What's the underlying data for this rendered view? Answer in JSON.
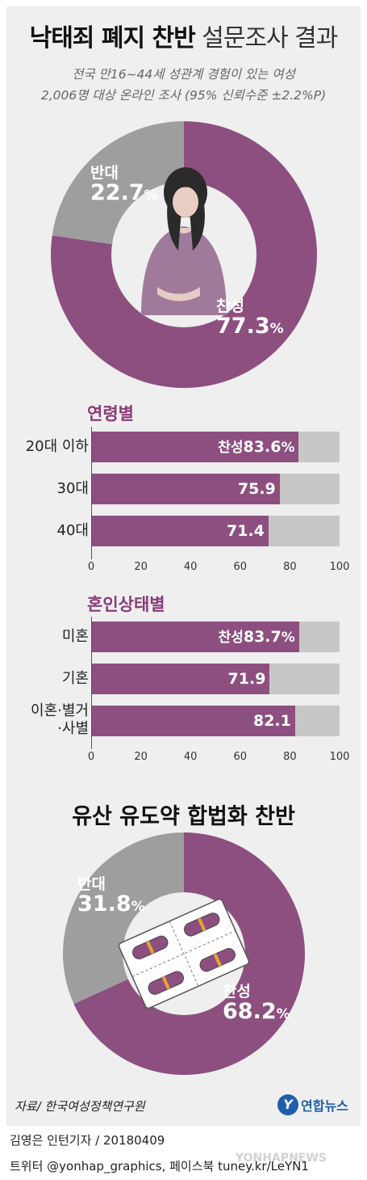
{
  "header": {
    "title_bold": "낙태죄 폐지 찬반",
    "title_light": "설문조사 결과",
    "subtitle_1": "전국 만16~44세 성관계 경험이 있는 여성",
    "subtitle_2": "2,006명 대상 온라인 조사 (95% 신뢰수준 ±2.2%P)"
  },
  "colors": {
    "accent": "#8b3b78",
    "favor": "#8d4f7f",
    "oppose": "#9e9e9e",
    "track": "#c8c7c8",
    "panel": "#efefef"
  },
  "chart_data": [
    {
      "type": "pie",
      "title": "낙태죄 폐지 찬반",
      "slices": [
        {
          "label": "찬성",
          "value": 77.3,
          "color": "#8d4f7f"
        },
        {
          "label": "반대",
          "value": 22.7,
          "color": "#9e9e9e"
        }
      ],
      "unit": "%",
      "center_icon": "woman-illustration-icon"
    },
    {
      "type": "bar",
      "title": "연령별",
      "categories": [
        "20대 이하",
        "30대",
        "40대"
      ],
      "values": [
        83.6,
        75.9,
        71.4
      ],
      "value_prefix_first": "찬성",
      "unit_first": "%",
      "xlim": [
        0,
        100
      ],
      "xticks": [
        0,
        20,
        40,
        60,
        80,
        100
      ]
    },
    {
      "type": "bar",
      "title": "혼인상태별",
      "categories": [
        "미혼",
        "기혼",
        "이혼·별거\n·사별"
      ],
      "values": [
        83.7,
        71.9,
        82.1
      ],
      "value_prefix_first": "찬성",
      "unit_first": "%",
      "xlim": [
        0,
        100
      ],
      "xticks": [
        0,
        20,
        40,
        60,
        80,
        100
      ]
    },
    {
      "type": "pie",
      "title": "유산 유도약 합법화 찬반",
      "slices": [
        {
          "label": "찬성",
          "value": 68.2,
          "color": "#8d4f7f"
        },
        {
          "label": "반대",
          "value": 31.8,
          "color": "#9e9e9e"
        }
      ],
      "unit": "%",
      "center_icon": "pill-blister-pack-icon"
    }
  ],
  "footer": {
    "source": "자료/ 한국여성정책연구원",
    "logo_mark": "Y",
    "logo_text": "연합뉴스",
    "credit_1": "김영은 인턴기자 / 20180409",
    "credit_2": "트위터 @yonhap_graphics, 페이스북 tuney.kr/LeYN1",
    "watermark": "YONHAPNEWS"
  }
}
